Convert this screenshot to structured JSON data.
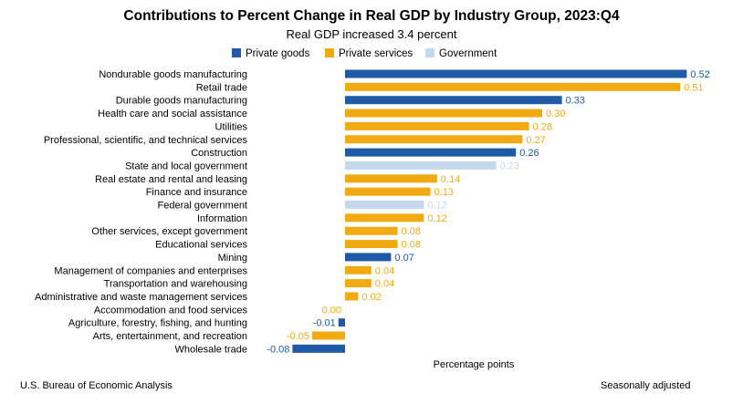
{
  "chart_data": {
    "type": "bar",
    "orientation": "horizontal",
    "title": "Contributions to Percent Change in Real GDP by Industry Group, 2023:Q4",
    "subtitle": "Real GDP increased 3.4 percent",
    "xlabel": "Percentage points",
    "legend": {
      "placement": "top",
      "items": [
        {
          "key": "goods",
          "label": "Private goods",
          "color": "#1f5aa6"
        },
        {
          "key": "services",
          "label": "Private services",
          "color": "#f2aa13"
        },
        {
          "key": "government",
          "label": "Government",
          "color": "#c6d8ee"
        }
      ]
    },
    "categories": [
      "Nondurable goods manufacturing",
      "Retail trade",
      "Durable goods manufacturing",
      "Health care and social assistance",
      "Utilities",
      "Professional, scientific, and technical services",
      "Construction",
      "State and local government",
      "Real estate and rental and leasing",
      "Finance and insurance",
      "Federal government",
      "Information",
      "Other services, except government",
      "Educational services",
      "Mining",
      "Management of companies and enterprises",
      "Transportation and warehousing",
      "Administrative and waste management services",
      "Accommodation and food services",
      "Agriculture, forestry, fishing, and hunting",
      "Arts, entertainment, and recreation",
      "Wholesale trade"
    ],
    "values": [
      0.52,
      0.51,
      0.33,
      0.3,
      0.28,
      0.27,
      0.26,
      0.23,
      0.14,
      0.13,
      0.12,
      0.12,
      0.08,
      0.08,
      0.07,
      0.04,
      0.04,
      0.02,
      0.0,
      -0.01,
      -0.05,
      -0.08
    ],
    "value_labels": [
      "0.52",
      "0.51",
      "0.33",
      "0.30",
      "0.28",
      "0.27",
      "0.26",
      "0.23",
      "0.14",
      "0.13",
      "0.12",
      "0.12",
      "0.08",
      "0.08",
      "0.07",
      "0.04",
      "0.04",
      "0.02",
      "0.00",
      "-0.01",
      "-0.05",
      "-0.08"
    ],
    "groups": [
      "goods",
      "services",
      "goods",
      "services",
      "services",
      "services",
      "goods",
      "government",
      "services",
      "services",
      "government",
      "services",
      "services",
      "services",
      "goods",
      "services",
      "services",
      "services",
      "services",
      "goods",
      "services",
      "goods"
    ],
    "xlim": [
      -0.08,
      0.52
    ],
    "grid": false
  },
  "footer": {
    "source": "U.S. Bureau of Economic Analysis",
    "note": "Seasonally adjusted"
  }
}
